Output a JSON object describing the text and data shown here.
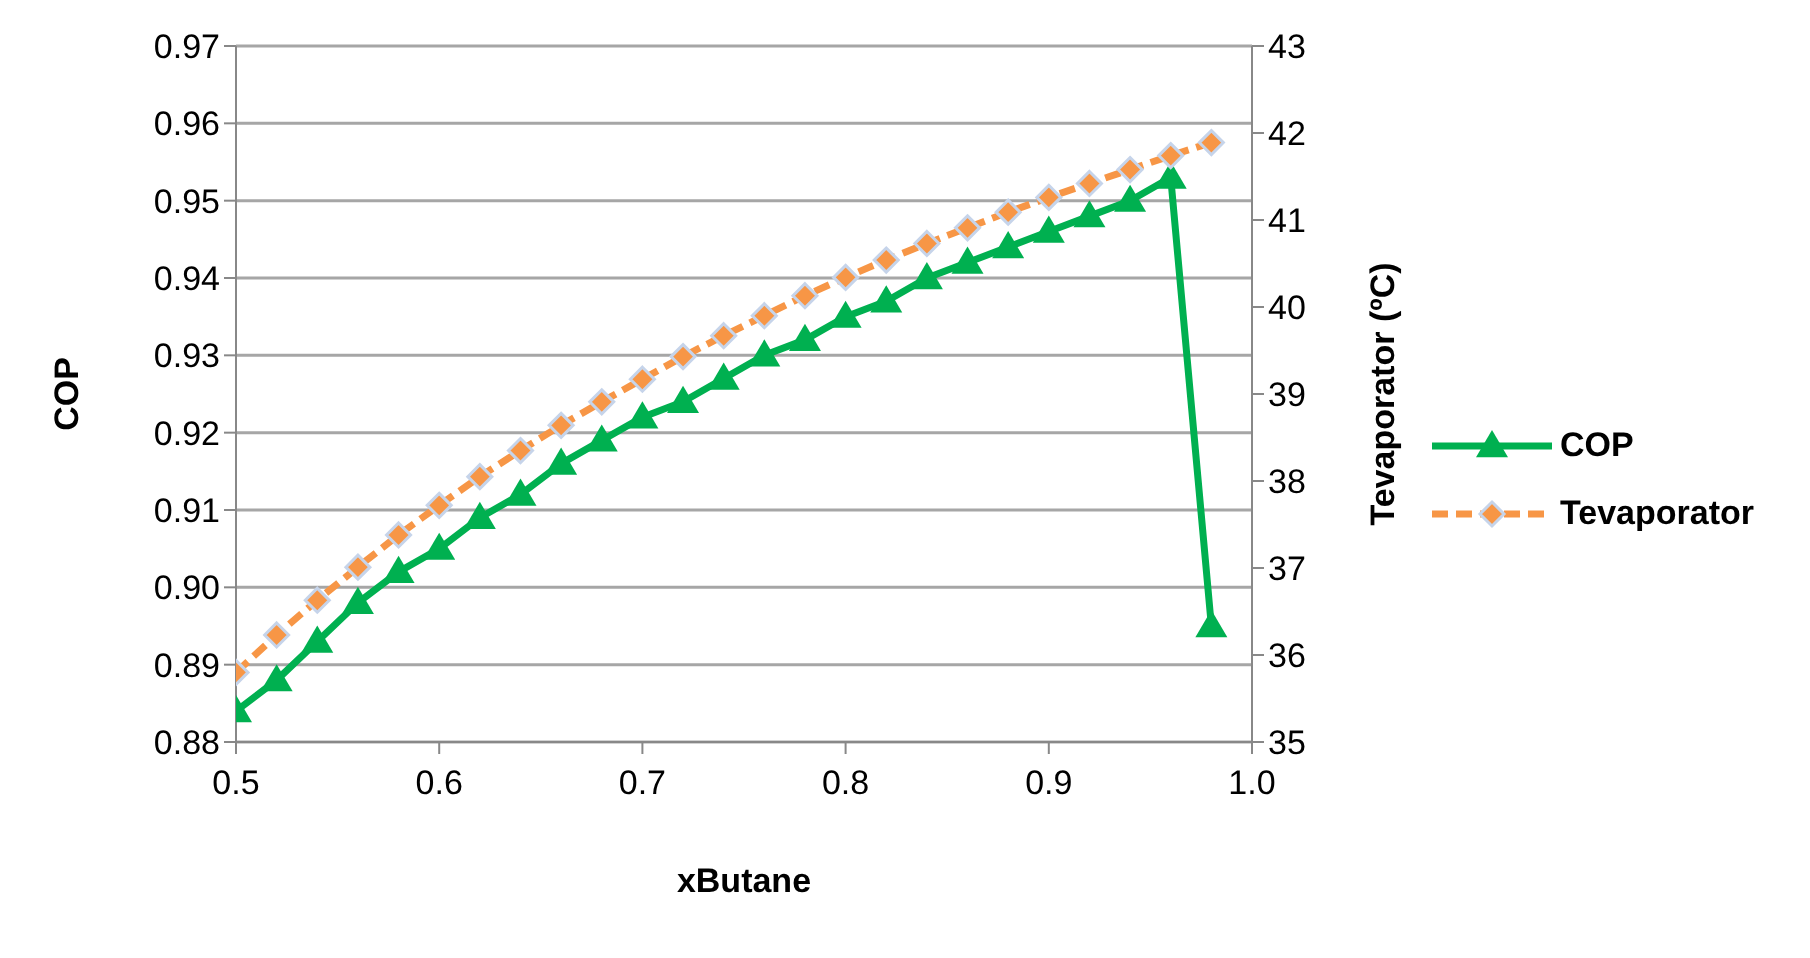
{
  "chart_data": {
    "type": "line",
    "xlabel": "xButane",
    "ylabel": "COP",
    "y2label": "Tevaporator (ºC)",
    "x": [
      0.5,
      0.52,
      0.54,
      0.56,
      0.58,
      0.6,
      0.62,
      0.64,
      0.66,
      0.68,
      0.7,
      0.72,
      0.74,
      0.76,
      0.78,
      0.8,
      0.82,
      0.84,
      0.86,
      0.88,
      0.9,
      0.92,
      0.94,
      0.96,
      0.98
    ],
    "series": [
      {
        "name": "COP",
        "color": "#00b050",
        "marker": "triangle",
        "line_style": "solid",
        "values": [
          0.884,
          0.888,
          0.893,
          0.898,
          0.902,
          0.905,
          0.909,
          0.912,
          0.916,
          0.919,
          0.922,
          0.924,
          0.927,
          0.93,
          0.932,
          0.935,
          0.937,
          0.94,
          0.942,
          0.944,
          0.946,
          0.948,
          0.95,
          0.953,
          0.895
        ]
      },
      {
        "name": "Tevaporator",
        "color": "#f79646",
        "marker": "diamond",
        "line_style": "dashed",
        "axis": "y2",
        "values": [
          35.8,
          36.23,
          36.63,
          37.01,
          37.38,
          37.72,
          38.05,
          38.35,
          38.64,
          38.91,
          39.17,
          39.43,
          39.67,
          39.9,
          40.13,
          40.34,
          40.54,
          40.73,
          40.91,
          41.09,
          41.26,
          41.42,
          41.58,
          41.74,
          41.89
        ]
      }
    ],
    "xlim": [
      0.5,
      1.0
    ],
    "xticks": [
      0.5,
      0.6,
      0.7,
      0.8,
      0.9,
      {
        "value": 1.0,
        "label": "1.0"
      }
    ],
    "ylim": [
      0.88,
      0.97
    ],
    "yticks": [
      0.88,
      0.89,
      {
        "value": 0.9,
        "label": "0.90"
      },
      0.91,
      0.92,
      0.93,
      0.94,
      0.95,
      0.96,
      0.97
    ],
    "y2lim": [
      35,
      43
    ],
    "y2ticks": [
      35,
      36,
      37,
      38,
      39,
      40,
      41,
      42,
      43
    ],
    "grid": "y",
    "legend": "right"
  }
}
